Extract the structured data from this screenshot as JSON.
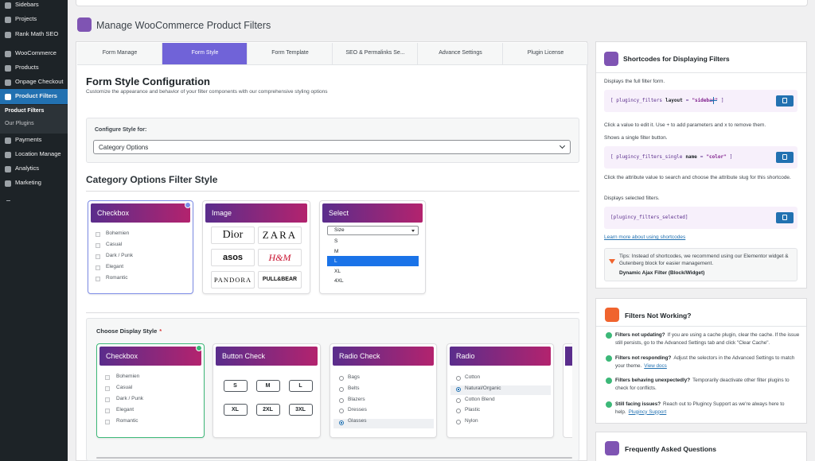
{
  "sidebar": {
    "items": [
      "Sidebars",
      "Projects",
      "Rank Math SEO",
      "WooCommerce",
      "Products",
      "Onpage Checkout",
      "Product Filters"
    ],
    "submenu": [
      "Product Filters",
      "Our Plugins"
    ],
    "items_after": [
      "Payments",
      "Location Manage",
      "Analytics",
      "Marketing"
    ]
  },
  "header": {
    "title": "Manage WooCommerce Product Filters"
  },
  "tabs": [
    "Form Manage",
    "Form Style",
    "Form Template",
    "SEO & Permalinks Se...",
    "Advance Settings",
    "Plugin License"
  ],
  "form": {
    "title": "Form Style Configuration",
    "subtitle": "Customize the appearance and behavior of your filter components with our comprehensive styling options",
    "configure_label": "Configure Style for:",
    "configure_value": "Category Options"
  },
  "filter_style": {
    "title": "Category Options Filter Style",
    "cards": [
      {
        "title": "Checkbox",
        "items": [
          "Bohemien",
          "Casual",
          "Dark / Punk",
          "Elegant",
          "Romantic"
        ]
      },
      {
        "title": "Image",
        "brands": [
          "Dior",
          "ZARA",
          "asos",
          "H&M",
          "PANDORA",
          "PULL&BEAR"
        ]
      },
      {
        "title": "Select",
        "placeholder": "Size",
        "options": [
          "S",
          "M",
          "L",
          "XL",
          "4XL"
        ]
      }
    ]
  },
  "display": {
    "label": "Choose Display Style",
    "required": "*",
    "cards": [
      {
        "title": "Checkbox",
        "items": [
          "Bohemien",
          "Casual",
          "Dark / Punk",
          "Elegant",
          "Romantic"
        ]
      },
      {
        "title": "Button Check",
        "buttons": [
          "S",
          "M",
          "L",
          "XL",
          "2XL",
          "3XL"
        ]
      },
      {
        "title": "Radio Check",
        "items": [
          "Bags",
          "Belts",
          "Blazers",
          "Dresses",
          "Glasses"
        ]
      },
      {
        "title": "Radio",
        "items": [
          "Cotton",
          "Natural/Organic",
          "Cotton Blend",
          "Plastic",
          "Nylon"
        ]
      }
    ]
  },
  "shortcodes": {
    "title": "Shortcodes for Displaying Filters",
    "blocks": [
      {
        "description": "Displays the full filter form.",
        "code": [
          "[ plugincy_filters",
          "layout",
          "=",
          "\"sidebar\"",
          "]"
        ],
        "hint": "Click a value to edit it. Use + to add parameters and x to remove them."
      },
      {
        "description": "Shows a single filter button.",
        "code": [
          "[ plugincy_filters_single",
          "name",
          "=",
          "\"color\"",
          "]"
        ],
        "hint": "Click the attribute value to search and choose the attribute slug for this shortcode."
      },
      {
        "description": "Displays selected filters.",
        "code": [
          "[plugincy_filters_selected]"
        ]
      }
    ],
    "link": "Learn more about using shortcodes",
    "tip": "Tips: Instead of shortcodes, we recommend using our Elementor widget & Gutenberg block for easier management.",
    "tip_bold": "Dynamic Ajax Filter (Block/Widget)"
  },
  "troubleshoot": {
    "title": "Filters Not Working?",
    "items": [
      {
        "question": "Filters not updating?",
        "answer": "If you are using a cache plugin, clear the cache. If the issue still persists, go to the Advanced Settings tab and click \"Clear Cache\"."
      },
      {
        "question": "Filters not responding?",
        "answer": "Adjust the selectors in the Advanced Settings to match your theme.",
        "link": "View docs"
      },
      {
        "question": "Filters behaving unexpectedly?",
        "answer": "Temporarily deactivate other filter plugins to check for conflicts."
      },
      {
        "question": "Still facing issues?",
        "answer": "Reach out to Plugincy Support as we're always here to help.",
        "link": "Plugincy Support"
      }
    ]
  },
  "faq": {
    "title": "Frequently Asked Questions"
  }
}
